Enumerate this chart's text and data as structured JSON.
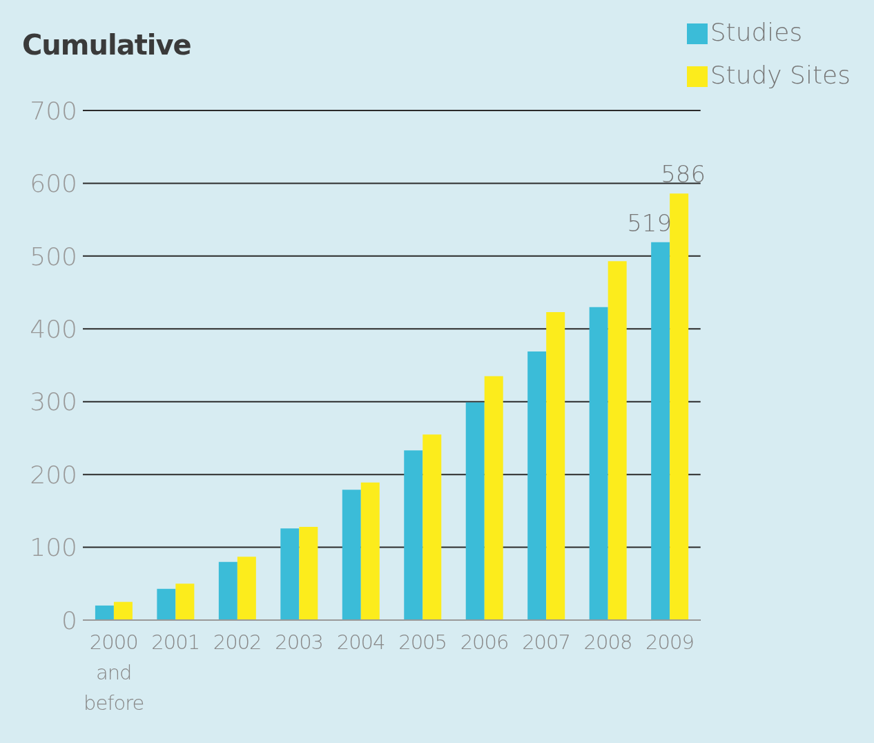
{
  "chart_data": {
    "type": "bar",
    "title": "Cumulative",
    "categories": [
      "2000 and before",
      "2001",
      "2002",
      "2003",
      "2004",
      "2005",
      "2006",
      "2007",
      "2008",
      "2009"
    ],
    "series": [
      {
        "name": "Studies",
        "color": "#3bbcd8",
        "values": [
          20,
          43,
          80,
          126,
          179,
          233,
          299,
          369,
          430,
          519
        ],
        "value_labels": [
          null,
          null,
          null,
          null,
          null,
          null,
          null,
          null,
          null,
          "519"
        ]
      },
      {
        "name": "Study Sites",
        "color": "#fcec1c",
        "values": [
          25,
          50,
          87,
          128,
          189,
          255,
          335,
          423,
          493,
          586
        ],
        "value_labels": [
          null,
          null,
          null,
          null,
          null,
          null,
          null,
          null,
          null,
          "586"
        ]
      }
    ],
    "ylim": [
      0,
      700
    ],
    "yticks": [
      0,
      100,
      200,
      300,
      400,
      500,
      600,
      700
    ],
    "grid": "y",
    "legend": "top right"
  }
}
